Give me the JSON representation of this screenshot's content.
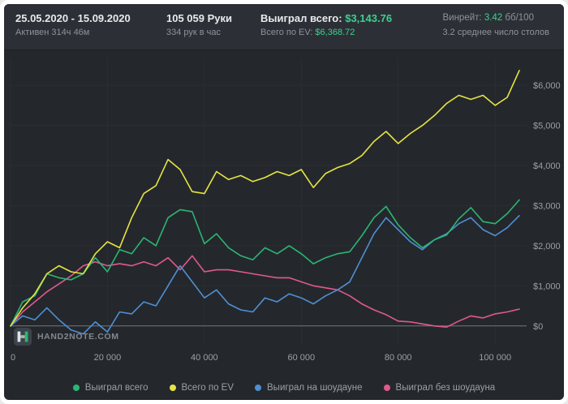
{
  "header": {
    "period": "25.05.2020 - 15.09.2020",
    "active_time": "Активен 314ч 46м",
    "hands": "105 059 Руки",
    "hands_per_hour": "334 рук в час",
    "won_label": "Выиграл всего:",
    "won_value": "$3,143.76",
    "ev_label": "Всего по EV:",
    "ev_value": "$6,368.72",
    "winrate_label": "Винрейт:",
    "winrate_value": "3.42",
    "winrate_unit": "бб/100",
    "avg_tables": "3.2 среднее число столов"
  },
  "watermark": {
    "text": "HAND2NOTE.COM"
  },
  "colors": {
    "positive_value": "#3ecf8e",
    "won_total_line": "#2bb673",
    "ev_total_line": "#e6e345",
    "showdown_line": "#4f8fd4",
    "non_showdown_line": "#e2588c",
    "background": "#24282c",
    "header_background": "#2c3036",
    "zero_line": "#70777d",
    "tick_text": "#9aa0a6"
  },
  "chart_data": {
    "type": "line",
    "title": "",
    "xlabel": "",
    "ylabel": "",
    "xlim": [
      0,
      106500
    ],
    "ylim": [
      -450,
      6550
    ],
    "grid": true,
    "legend_position": "bottom",
    "zero_line": true,
    "x": [
      0,
      2500,
      5000,
      7500,
      10000,
      12500,
      15000,
      17500,
      20000,
      22500,
      25000,
      27500,
      30000,
      32500,
      35000,
      37500,
      40000,
      42500,
      45000,
      47500,
      50000,
      52500,
      55000,
      57500,
      60000,
      62500,
      65000,
      67500,
      70000,
      72500,
      75000,
      77500,
      80000,
      82500,
      85000,
      87500,
      90000,
      92500,
      95000,
      97500,
      100000,
      102500,
      105000
    ],
    "series": [
      {
        "name": "Выиграл всего",
        "color": "#2bb673",
        "values": [
          0,
          600,
          750,
          1300,
          1200,
          1150,
          1300,
          1700,
          1350,
          1900,
          1800,
          2200,
          2000,
          2700,
          2900,
          2850,
          2050,
          2300,
          1950,
          1750,
          1650,
          1950,
          1800,
          2000,
          1800,
          1550,
          1700,
          1800,
          1850,
          2250,
          2700,
          2980,
          2520,
          2200,
          1950,
          2150,
          2270,
          2670,
          2950,
          2600,
          2550,
          2800,
          3144
        ]
      },
      {
        "name": "Всего по EV",
        "color": "#e6e345",
        "values": [
          0,
          450,
          800,
          1300,
          1500,
          1350,
          1300,
          1800,
          2100,
          1950,
          2700,
          3300,
          3500,
          4150,
          3900,
          3350,
          3300,
          3850,
          3650,
          3750,
          3600,
          3700,
          3850,
          3750,
          3900,
          3450,
          3800,
          3950,
          4050,
          4250,
          4600,
          4850,
          4550,
          4800,
          5000,
          5250,
          5550,
          5750,
          5650,
          5750,
          5500,
          5700,
          6369
        ]
      },
      {
        "name": "Выиграл на шоудауне",
        "color": "#4f8fd4",
        "values": [
          0,
          250,
          150,
          450,
          150,
          -100,
          -200,
          100,
          -150,
          350,
          300,
          600,
          500,
          1000,
          1500,
          1100,
          700,
          900,
          550,
          400,
          350,
          700,
          600,
          800,
          700,
          550,
          750,
          900,
          1100,
          1700,
          2300,
          2700,
          2400,
          2100,
          1900,
          2150,
          2300,
          2550,
          2700,
          2400,
          2250,
          2450,
          2750
        ]
      },
      {
        "name": "Выиграл без шоудауна",
        "color": "#e2588c",
        "values": [
          0,
          350,
          600,
          850,
          1050,
          1250,
          1500,
          1600,
          1500,
          1550,
          1500,
          1600,
          1500,
          1700,
          1400,
          1750,
          1350,
          1400,
          1400,
          1350,
          1300,
          1250,
          1200,
          1200,
          1100,
          1000,
          950,
          900,
          750,
          550,
          400,
          280,
          120,
          100,
          50,
          0,
          -30,
          120,
          250,
          200,
          300,
          350,
          420
        ]
      }
    ],
    "xticks": [
      {
        "value": 0,
        "label": "0"
      },
      {
        "value": 20000,
        "label": "20 000"
      },
      {
        "value": 40000,
        "label": "40 000"
      },
      {
        "value": 60000,
        "label": "60 000"
      },
      {
        "value": 80000,
        "label": "80 000"
      },
      {
        "value": 100000,
        "label": "100 000"
      }
    ],
    "yticks": [
      {
        "value": 0,
        "label": "$0"
      },
      {
        "value": 1000,
        "label": "$1,000"
      },
      {
        "value": 2000,
        "label": "$2,000"
      },
      {
        "value": 3000,
        "label": "$3,000"
      },
      {
        "value": 4000,
        "label": "$4,000"
      },
      {
        "value": 5000,
        "label": "$5,000"
      },
      {
        "value": 6000,
        "label": "$6,000"
      }
    ]
  }
}
